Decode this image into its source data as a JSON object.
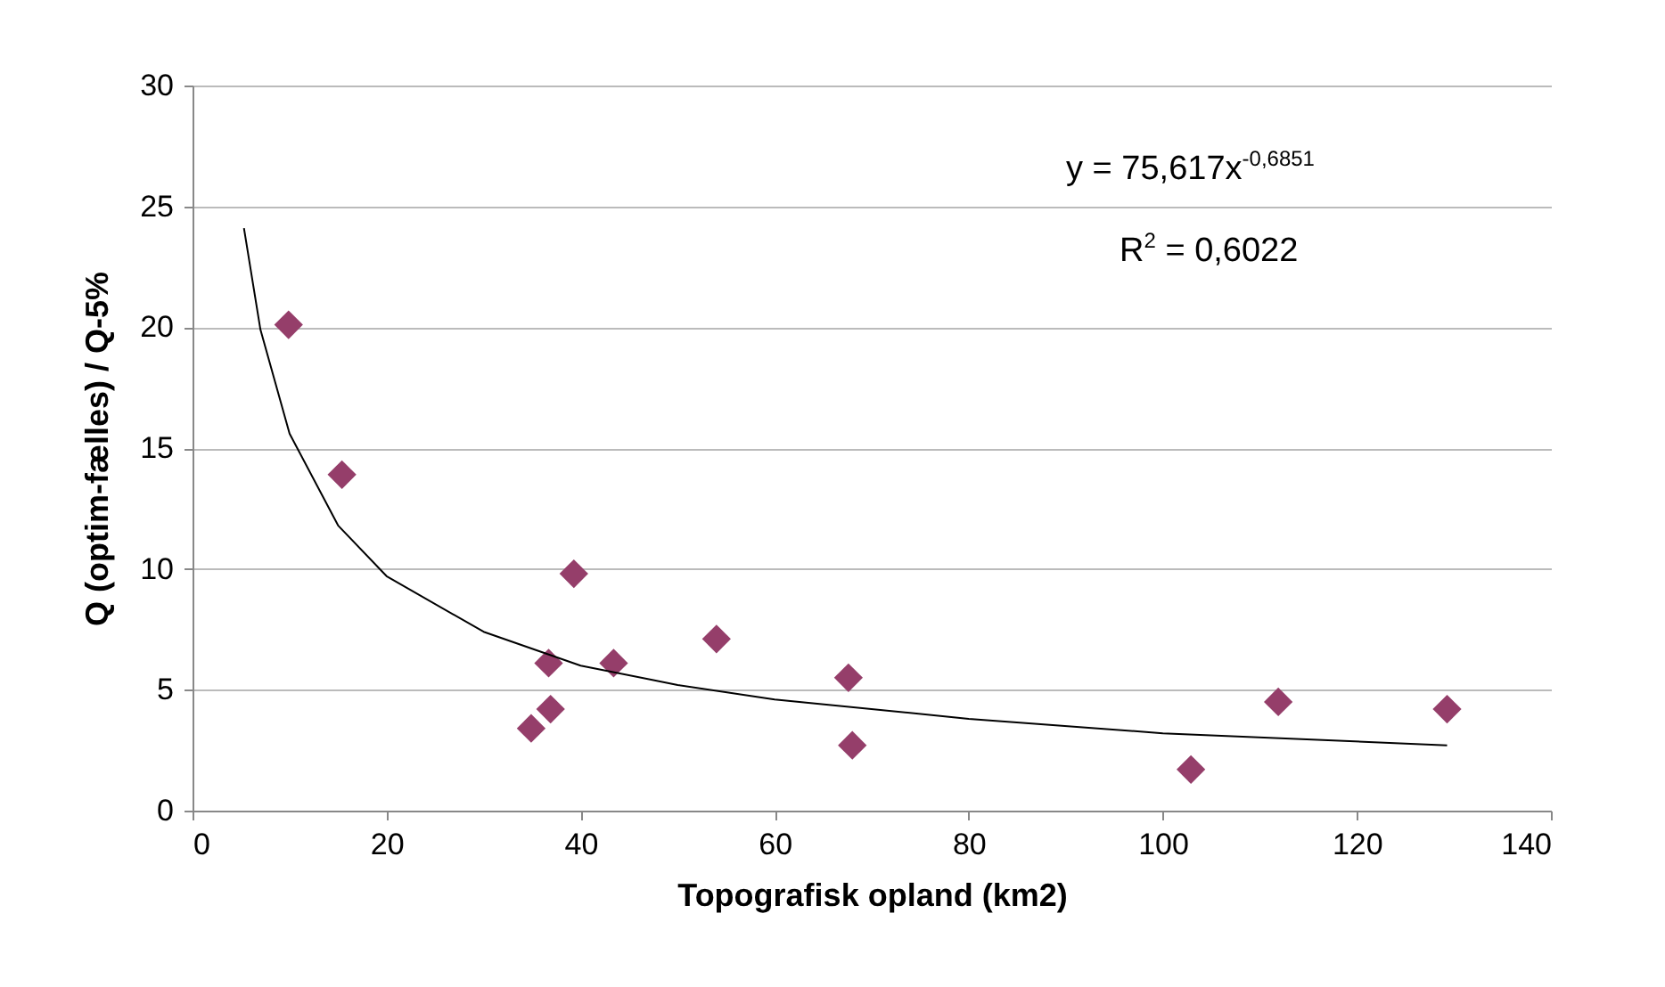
{
  "chart_data": {
    "type": "scatter",
    "xlabel": "Topografisk opland (km2)",
    "ylabel": "Q (optim-fælles) / Q-5%",
    "xlim": [
      0,
      140
    ],
    "xticks": [
      0,
      20,
      40,
      60,
      80,
      100,
      120,
      140
    ],
    "ylim": [
      0,
      30
    ],
    "yticks": [
      0,
      5,
      10,
      15,
      20,
      25,
      30
    ],
    "grid": "y",
    "marker": "diamond",
    "annotations": [
      "y = 75,617x$^{-0,6851}$",
      "R$^{2}$ = 0,6022"
    ],
    "series": [
      {
        "color": "#953e6a",
        "x": [
          9.9,
          15.4,
          39.3,
          36.7,
          43.4,
          54,
          67.6,
          68,
          36.9,
          34.9,
          102.9,
          111.9,
          129.3
        ],
        "values": [
          20.1,
          13.9,
          9.8,
          6.1,
          6.1,
          7.1,
          5.5,
          2.7,
          4.2,
          3.4,
          1.7,
          4.5,
          4.2
        ]
      },
      {
        "type": "line",
        "marker": "none",
        "color": "#000000",
        "x": [
          5.3,
          7,
          10,
          15,
          20,
          30,
          40,
          50,
          60,
          80,
          100,
          129.3
        ],
        "values": [
          24.1,
          19.9,
          15.6,
          11.8,
          9.7,
          7.4,
          6.0,
          5.2,
          4.6,
          3.8,
          3.2,
          2.7
        ]
      }
    ]
  }
}
